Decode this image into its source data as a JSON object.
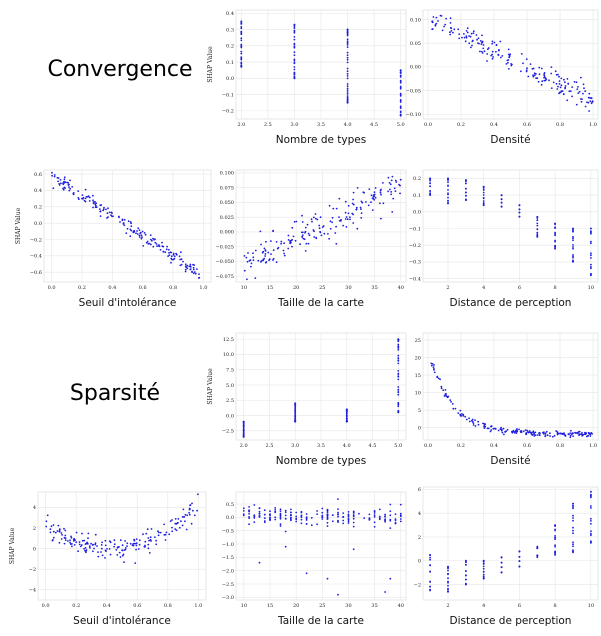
{
  "sections": [
    {
      "title": "Convergence"
    },
    {
      "title": "Sparsité"
    }
  ],
  "colors": {
    "points": "#1f1fe0"
  },
  "chart_data": [
    {
      "type": "scatter",
      "section": "Convergence",
      "xlabel": "Nombre de types",
      "ylabel": "SHAP Value",
      "xlim": [
        1.9,
        5.1
      ],
      "ylim": [
        -0.25,
        0.42
      ],
      "xticks": [
        "2.0",
        "2.5",
        "3.0",
        "3.5",
        "4.0",
        "4.5",
        "5.0"
      ],
      "xtick_values": [
        2,
        2.5,
        3,
        3.5,
        4,
        4.5,
        5
      ],
      "yticks": [
        "−0.2",
        "−0.1",
        "0.0",
        "0.1",
        "0.2",
        "0.3",
        "0.4"
      ],
      "ytick_values": [
        -0.2,
        -0.1,
        0,
        0.1,
        0.2,
        0.3,
        0.4
      ],
      "groups": [
        {
          "x": 2,
          "ymin": 0.07,
          "ymax": 0.35,
          "n": 30
        },
        {
          "x": 3,
          "ymin": 0.0,
          "ymax": 0.33,
          "n": 30
        },
        {
          "x": 4,
          "ymin": -0.15,
          "ymax": 0.3,
          "n": 40
        },
        {
          "x": 5,
          "ymin": -0.23,
          "ymax": 0.05,
          "n": 30
        }
      ]
    },
    {
      "type": "scatter",
      "section": "Convergence",
      "xlabel": "Densité",
      "ylabel": "",
      "xlim": [
        -0.03,
        1.03
      ],
      "ylim": [
        -0.11,
        0.12
      ],
      "xticks": [
        "0.0",
        "0.2",
        "0.4",
        "0.6",
        "0.8",
        "1.0"
      ],
      "xtick_values": [
        0,
        0.2,
        0.4,
        0.6,
        0.8,
        1
      ],
      "yticks": [
        "−0.10",
        "−0.05",
        "0.00",
        "0.05",
        "0.10"
      ],
      "ytick_values": [
        -0.1,
        -0.05,
        0,
        0.05,
        0.1
      ],
      "trend": {
        "x0": 0.02,
        "y0": 0.1,
        "x1": 1.0,
        "y1": -0.07,
        "noise": 0.012,
        "n": 200
      }
    },
    {
      "type": "scatter",
      "section": "Convergence",
      "xlabel": "Seuil d'intolérance",
      "ylabel": "SHAP Value",
      "xlim": [
        -0.05,
        1.05
      ],
      "ylim": [
        -0.72,
        0.65
      ],
      "xticks": [
        "0.0",
        "0.2",
        "0.4",
        "0.6",
        "0.8",
        "1.0"
      ],
      "xtick_values": [
        0,
        0.2,
        0.4,
        0.6,
        0.8,
        1
      ],
      "yticks": [
        "−0.6",
        "−0.4",
        "−0.2",
        "0.0",
        "0.2",
        "0.4",
        "0.6"
      ],
      "ytick_values": [
        -0.6,
        -0.4,
        -0.2,
        0,
        0.2,
        0.4,
        0.6
      ],
      "trend": {
        "x0": 0.0,
        "y0": 0.58,
        "x1": 1.0,
        "y1": -0.65,
        "noise": 0.04,
        "n": 200
      }
    },
    {
      "type": "scatter",
      "section": "Convergence",
      "xlabel": "Taille de la carte",
      "ylabel": "",
      "xlim": [
        8.5,
        41
      ],
      "ylim": [
        -0.085,
        0.105
      ],
      "xticks": [
        "10",
        "15",
        "20",
        "25",
        "30",
        "35",
        "40"
      ],
      "xtick_values": [
        10,
        15,
        20,
        25,
        30,
        35,
        40
      ],
      "yticks": [
        "−0.075",
        "−0.050",
        "−0.025",
        "0.000",
        "0.025",
        "0.050",
        "0.075",
        "0.100"
      ],
      "ytick_values": [
        -0.075,
        -0.05,
        -0.025,
        0,
        0.025,
        0.05,
        0.075,
        0.1
      ],
      "trend": {
        "x0": 10,
        "y0": -0.06,
        "x1": 40,
        "y1": 0.08,
        "noise": 0.015,
        "n": 200
      }
    },
    {
      "type": "scatter",
      "section": "Convergence",
      "xlabel": "Distance de perception",
      "ylabel": "",
      "xlim": [
        0.6,
        10.4
      ],
      "ylim": [
        -0.42,
        0.25
      ],
      "xticks": [
        "2",
        "4",
        "6",
        "8",
        "10"
      ],
      "xtick_values": [
        2,
        4,
        6,
        8,
        10
      ],
      "yticks": [
        "−0.4",
        "−0.3",
        "−0.2",
        "−0.1",
        "0.0",
        "0.1",
        "0.2"
      ],
      "ytick_values": [
        -0.4,
        -0.3,
        -0.2,
        -0.1,
        0,
        0.1,
        0.2
      ],
      "groups": [
        {
          "x": 1,
          "ymin": 0.1,
          "ymax": 0.2,
          "n": 14
        },
        {
          "x": 2,
          "ymin": 0.05,
          "ymax": 0.2,
          "n": 14
        },
        {
          "x": 3,
          "ymin": 0.07,
          "ymax": 0.19,
          "n": 14
        },
        {
          "x": 4,
          "ymin": 0.04,
          "ymax": 0.15,
          "n": 14
        },
        {
          "x": 5,
          "ymin": 0.03,
          "ymax": 0.1,
          "n": 12
        },
        {
          "x": 6,
          "ymin": -0.03,
          "ymax": 0.04,
          "n": 12
        },
        {
          "x": 7,
          "ymin": -0.15,
          "ymax": -0.03,
          "n": 14
        },
        {
          "x": 8,
          "ymin": -0.22,
          "ymax": -0.07,
          "n": 16
        },
        {
          "x": 9,
          "ymin": -0.3,
          "ymax": -0.1,
          "n": 16
        },
        {
          "x": 10,
          "ymin": -0.38,
          "ymax": -0.1,
          "n": 16
        }
      ]
    },
    {
      "type": "scatter",
      "section": "Sparsité",
      "xlabel": "Nombre de types",
      "ylabel": "SHAP Value",
      "xlim": [
        1.85,
        5.15
      ],
      "ylim": [
        -4,
        13.5
      ],
      "xticks": [
        "2.0",
        "2.5",
        "3.0",
        "3.5",
        "4.0",
        "4.5",
        "5.0"
      ],
      "xtick_values": [
        2,
        2.5,
        3,
        3.5,
        4,
        4.5,
        5
      ],
      "yticks": [
        "−2.5",
        "0.0",
        "2.5",
        "5.0",
        "7.5",
        "10.0",
        "12.5"
      ],
      "ytick_values": [
        -2.5,
        0,
        2.5,
        5,
        7.5,
        10,
        12.5
      ],
      "groups": [
        {
          "x": 2,
          "ymin": -3.5,
          "ymax": -1.0,
          "n": 30
        },
        {
          "x": 3,
          "ymin": -1.0,
          "ymax": 2.0,
          "n": 30
        },
        {
          "x": 4,
          "ymin": -1.0,
          "ymax": 1.0,
          "n": 30
        },
        {
          "x": 5,
          "ymin": 0.5,
          "ymax": 12.5,
          "n": 40
        }
      ]
    },
    {
      "type": "scatter",
      "section": "Sparsité",
      "xlabel": "Densité",
      "ylabel": "",
      "xlim": [
        -0.03,
        1.03
      ],
      "ylim": [
        -3.5,
        27
      ],
      "xticks": [
        "0.0",
        "0.2",
        "0.4",
        "0.6",
        "0.8",
        "1.0"
      ],
      "xtick_values": [
        0,
        0.2,
        0.4,
        0.6,
        0.8,
        1
      ],
      "yticks": [
        "0",
        "5",
        "10",
        "15",
        "20",
        "25"
      ],
      "ytick_values": [
        0,
        5,
        10,
        15,
        20,
        25
      ],
      "decay": {
        "a": 24,
        "k": 7,
        "c": -1.8,
        "noise": 0.8,
        "n": 200
      }
    },
    {
      "type": "scatter",
      "section": "Sparsité",
      "xlabel": "Seuil d'intolérance",
      "ylabel": "SHAP Value",
      "xlim": [
        -0.05,
        1.05
      ],
      "ylim": [
        -5,
        5.5
      ],
      "xticks": [
        "0.0",
        "0.2",
        "0.4",
        "0.6",
        "0.8",
        "1.0"
      ],
      "xtick_values": [
        0,
        0.2,
        0.4,
        0.6,
        0.8,
        1
      ],
      "yticks": [
        "−4",
        "−2",
        "0",
        "2",
        "4"
      ],
      "ytick_values": [
        -4,
        -2,
        0,
        2,
        4
      ],
      "parabola": {
        "vertex_x": 0.45,
        "vertex_y": 0.0,
        "left_y": 2.3,
        "right_y": 4.5,
        "noise": 0.5,
        "n": 200
      }
    },
    {
      "type": "scatter",
      "section": "Sparsité",
      "xlabel": "Taille de la carte",
      "ylabel": "",
      "xlim": [
        8.5,
        41
      ],
      "ylim": [
        -3.1,
        0.95
      ],
      "xticks": [
        "10",
        "15",
        "20",
        "25",
        "30",
        "35",
        "40"
      ],
      "xtick_values": [
        10,
        15,
        20,
        25,
        30,
        35,
        40
      ],
      "yticks": [
        "−3.0",
        "−2.5",
        "−2.0",
        "−1.5",
        "−1.0",
        "−0.5",
        "0.0",
        "0.5"
      ],
      "ytick_values": [
        -3,
        -2.5,
        -2,
        -1.5,
        -1,
        -0.5,
        0,
        0.5
      ],
      "flat": {
        "y": 0.05,
        "noise": 0.18,
        "n": 200,
        "outliers": [
          [
            13,
            -1.7
          ],
          [
            18,
            -1.1
          ],
          [
            22,
            -2.1
          ],
          [
            26,
            -2.3
          ],
          [
            28,
            -2.9
          ],
          [
            31,
            -1.2
          ],
          [
            37,
            -2.8
          ],
          [
            38,
            -2.3
          ]
        ]
      }
    },
    {
      "type": "scatter",
      "section": "Sparsité",
      "xlabel": "Distance de perception",
      "ylabel": "",
      "xlim": [
        0.6,
        10.4
      ],
      "ylim": [
        -3.3,
        6.2
      ],
      "xticks": [
        "2",
        "4",
        "6",
        "8",
        "10"
      ],
      "xtick_values": [
        2,
        4,
        6,
        8,
        10
      ],
      "yticks": [
        "−2",
        "0",
        "2",
        "4",
        "6"
      ],
      "ytick_values": [
        -2,
        0,
        2,
        4,
        6
      ],
      "groups": [
        {
          "x": 1,
          "ymin": -2.5,
          "ymax": 0.5,
          "n": 14
        },
        {
          "x": 2,
          "ymin": -2.6,
          "ymax": -0.5,
          "n": 14
        },
        {
          "x": 3,
          "ymin": -2.0,
          "ymax": 0.0,
          "n": 14
        },
        {
          "x": 4,
          "ymin": -1.5,
          "ymax": 0.0,
          "n": 14
        },
        {
          "x": 5,
          "ymin": -1.0,
          "ymax": 0.3,
          "n": 12
        },
        {
          "x": 6,
          "ymin": -0.5,
          "ymax": 0.8,
          "n": 12
        },
        {
          "x": 7,
          "ymin": 0.3,
          "ymax": 1.2,
          "n": 12
        },
        {
          "x": 8,
          "ymin": 0.5,
          "ymax": 3.0,
          "n": 16
        },
        {
          "x": 9,
          "ymin": 0.7,
          "ymax": 4.8,
          "n": 16
        },
        {
          "x": 10,
          "ymin": 1.5,
          "ymax": 5.8,
          "n": 16
        }
      ]
    }
  ]
}
